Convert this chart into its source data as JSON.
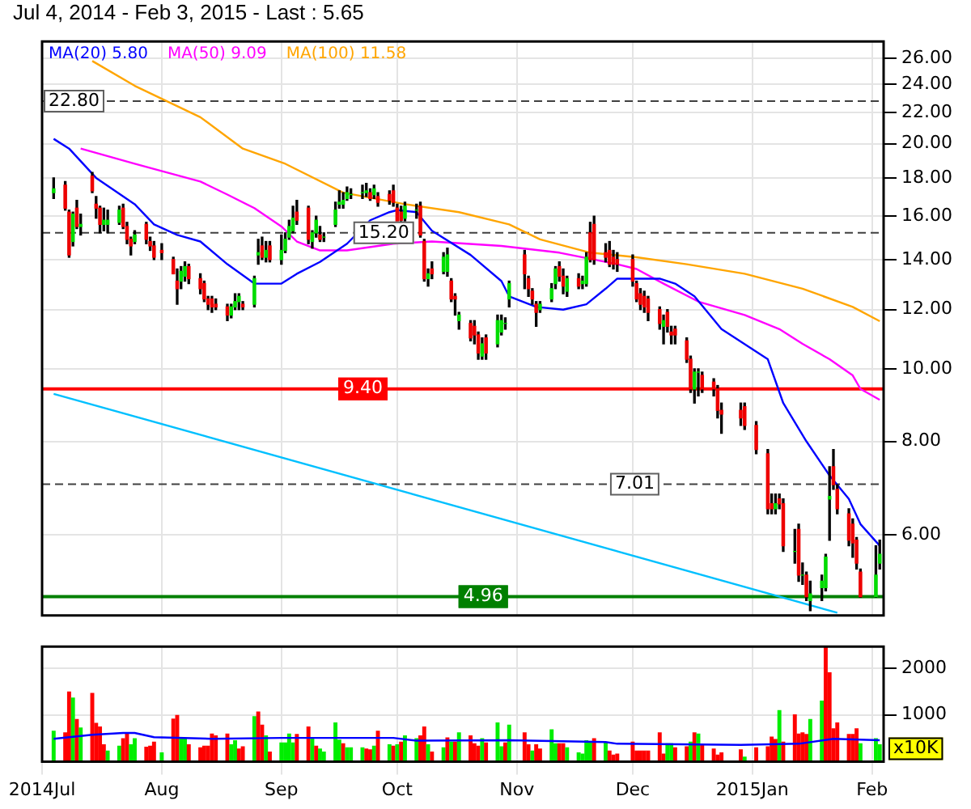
{
  "chart_data": [
    {
      "type": "candlestick",
      "title": "Jul 4, 2014 - Feb 3, 2015 - Last : 5.65",
      "x": [
        "2014-07-04",
        "2014-07-07",
        "2014-07-08",
        "2014-07-09",
        "2014-07-10",
        "2014-07-11",
        "2014-07-14",
        "2014-07-15",
        "2014-07-16",
        "2014-07-17",
        "2014-07-18",
        "2014-07-21",
        "2014-07-22",
        "2014-07-23",
        "2014-07-24",
        "2014-07-25",
        "2014-07-28",
        "2014-07-29",
        "2014-07-30",
        "2014-08-01",
        "2014-08-04",
        "2014-08-05",
        "2014-08-06",
        "2014-08-07",
        "2014-08-08",
        "2014-08-11",
        "2014-08-12",
        "2014-08-13",
        "2014-08-14",
        "2014-08-15",
        "2014-08-18",
        "2014-08-19",
        "2014-08-20",
        "2014-08-21",
        "2014-08-22",
        "2014-08-25",
        "2014-08-26",
        "2014-08-27",
        "2014-08-28",
        "2014-08-29",
        "2014-09-01",
        "2014-09-02",
        "2014-09-03",
        "2014-09-04",
        "2014-09-05",
        "2014-09-08",
        "2014-09-09",
        "2014-09-10",
        "2014-09-11",
        "2014-09-12",
        "2014-09-15",
        "2014-09-16",
        "2014-09-17",
        "2014-09-18",
        "2014-09-19",
        "2014-09-22",
        "2014-09-23",
        "2014-09-24",
        "2014-09-25",
        "2014-09-26",
        "2014-09-29",
        "2014-09-30",
        "2014-10-01",
        "2014-10-02",
        "2014-10-03",
        "2014-10-06",
        "2014-10-07",
        "2014-10-08",
        "2014-10-09",
        "2014-10-10",
        "2014-10-13",
        "2014-10-14",
        "2014-10-15",
        "2014-10-16",
        "2014-10-17",
        "2014-10-20",
        "2014-10-21",
        "2014-10-22",
        "2014-10-23",
        "2014-10-24",
        "2014-10-27",
        "2014-10-28",
        "2014-10-29",
        "2014-10-30",
        "2014-11-03",
        "2014-11-04",
        "2014-11-05",
        "2014-11-06",
        "2014-11-07",
        "2014-11-10",
        "2014-11-11",
        "2014-11-12",
        "2014-11-13",
        "2014-11-14",
        "2014-11-17",
        "2014-11-18",
        "2014-11-19",
        "2014-11-20",
        "2014-11-21",
        "2014-11-24",
        "2014-11-25",
        "2014-11-26",
        "2014-11-27",
        "2014-12-01",
        "2014-12-02",
        "2014-12-03",
        "2014-12-04",
        "2014-12-05",
        "2014-12-08",
        "2014-12-09",
        "2014-12-10",
        "2014-12-11",
        "2014-12-12",
        "2014-12-15",
        "2014-12-16",
        "2014-12-17",
        "2014-12-18",
        "2014-12-19",
        "2014-12-22",
        "2014-12-23",
        "2014-12-24",
        "2014-12-29",
        "2014-12-30",
        "2015-01-02",
        "2015-01-05",
        "2015-01-06",
        "2015-01-07",
        "2015-01-08",
        "2015-01-09",
        "2015-01-12",
        "2015-01-13",
        "2015-01-14",
        "2015-01-15",
        "2015-01-16",
        "2015-01-19",
        "2015-01-20",
        "2015-01-21",
        "2015-01-22",
        "2015-01-23",
        "2015-01-26",
        "2015-01-27",
        "2015-01-28",
        "2015-01-29",
        "2015-02-02",
        "2015-02-03"
      ],
      "ohlc": [
        [
          17.2,
          18.0,
          16.9,
          17.4
        ],
        [
          17.6,
          17.8,
          16.3,
          16.4
        ],
        [
          16.2,
          16.3,
          14.1,
          14.2
        ],
        [
          14.8,
          16.2,
          14.6,
          16.1
        ],
        [
          16.4,
          16.8,
          15.4,
          15.5
        ],
        [
          15.5,
          16.1,
          15.1,
          15.6
        ],
        [
          18.1,
          18.3,
          17.2,
          17.3
        ],
        [
          16.6,
          17.0,
          15.9,
          16.4
        ],
        [
          16.4,
          16.5,
          15.2,
          15.6
        ],
        [
          15.6,
          16.4,
          15.3,
          15.8
        ],
        [
          15.6,
          16.3,
          15.2,
          15.8
        ],
        [
          15.7,
          16.5,
          15.6,
          16.3
        ],
        [
          16.4,
          16.6,
          15.4,
          15.5
        ],
        [
          15.5,
          15.7,
          14.7,
          14.9
        ],
        [
          14.9,
          15.0,
          14.2,
          14.6
        ],
        [
          14.8,
          15.3,
          14.7,
          15.1
        ],
        [
          15.6,
          15.7,
          14.7,
          14.9
        ],
        [
          14.8,
          15.0,
          14.4,
          14.6
        ],
        [
          14.6,
          14.8,
          14.0,
          14.1
        ],
        [
          14.4,
          14.7,
          14.0,
          14.3
        ],
        [
          14.0,
          14.1,
          13.4,
          13.4
        ],
        [
          13.1,
          13.6,
          12.2,
          12.8
        ],
        [
          13.1,
          13.7,
          12.8,
          13.5
        ],
        [
          13.3,
          13.9,
          13.1,
          13.7
        ],
        [
          13.7,
          13.8,
          13.0,
          13.2
        ],
        [
          13.2,
          13.4,
          12.6,
          12.8
        ],
        [
          13.0,
          13.1,
          12.3,
          12.4
        ],
        [
          12.4,
          12.5,
          12.0,
          12.2
        ],
        [
          12.4,
          12.5,
          11.9,
          12.1
        ],
        [
          12.2,
          12.4,
          12.0,
          12.1
        ],
        [
          12.1,
          12.2,
          11.6,
          11.8
        ],
        [
          11.8,
          12.2,
          11.7,
          12.1
        ],
        [
          12.1,
          12.6,
          12.0,
          12.3
        ],
        [
          12.3,
          12.6,
          12.0,
          12.5
        ],
        [
          12.2,
          12.3,
          12.0,
          12.1
        ],
        [
          12.2,
          13.3,
          12.1,
          13.2
        ],
        [
          14.2,
          14.9,
          13.8,
          14.3
        ],
        [
          14.6,
          15.0,
          14.0,
          14.1
        ],
        [
          14.1,
          14.8,
          13.9,
          14.4
        ],
        [
          14.6,
          14.8,
          13.9,
          14.0
        ],
        [
          14.0,
          15.1,
          13.8,
          14.4
        ],
        [
          14.4,
          15.2,
          14.3,
          14.9
        ],
        [
          15.0,
          15.8,
          14.9,
          15.5
        ],
        [
          15.3,
          16.5,
          15.2,
          15.9
        ],
        [
          16.2,
          16.8,
          15.6,
          15.8
        ],
        [
          16.4,
          16.5,
          14.7,
          14.9
        ],
        [
          14.8,
          15.3,
          14.5,
          15.2
        ],
        [
          15.2,
          16.0,
          15.0,
          15.8
        ],
        [
          15.1,
          15.5,
          14.8,
          14.9
        ],
        [
          15.0,
          15.2,
          14.8,
          15.0
        ],
        [
          15.6,
          16.7,
          15.5,
          16.3
        ],
        [
          16.6,
          17.3,
          16.4,
          16.7
        ],
        [
          16.6,
          17.2,
          16.4,
          16.8
        ],
        [
          16.9,
          17.5,
          16.8,
          17.2
        ],
        [
          17.1,
          17.4,
          16.9,
          17.1
        ],
        [
          17.2,
          17.6,
          16.9,
          17.2
        ],
        [
          17.2,
          17.7,
          17.0,
          17.3
        ],
        [
          17.2,
          17.4,
          16.8,
          16.9
        ],
        [
          17.1,
          17.6,
          16.9,
          17.4
        ],
        [
          17.0,
          17.2,
          16.5,
          16.7
        ],
        [
          17.1,
          17.3,
          16.6,
          16.8
        ],
        [
          17.3,
          17.6,
          16.5,
          16.7
        ],
        [
          16.4,
          16.6,
          15.3,
          15.6
        ],
        [
          16.2,
          16.5,
          15.3,
          15.8
        ],
        [
          15.9,
          16.7,
          15.7,
          16.5
        ],
        [
          16.3,
          16.6,
          15.9,
          16.3
        ],
        [
          16.5,
          16.7,
          15.0,
          15.1
        ],
        [
          14.8,
          14.9,
          13.1,
          13.2
        ],
        [
          13.2,
          13.6,
          12.9,
          13.4
        ],
        [
          13.6,
          13.9,
          13.2,
          13.4
        ],
        [
          13.5,
          14.3,
          13.4,
          14.1
        ],
        [
          13.5,
          14.5,
          13.3,
          14.2
        ],
        [
          13.1,
          13.2,
          12.3,
          12.4
        ],
        [
          12.5,
          12.6,
          11.8,
          12.4
        ],
        [
          11.6,
          11.9,
          11.3,
          11.8
        ],
        [
          11.5,
          11.6,
          10.9,
          11.0
        ],
        [
          11.4,
          11.6,
          10.8,
          11.1
        ],
        [
          11.1,
          11.2,
          10.3,
          10.5
        ],
        [
          10.4,
          11.0,
          10.3,
          10.8
        ],
        [
          11.0,
          11.1,
          10.3,
          10.5
        ],
        [
          10.8,
          11.8,
          10.7,
          11.6
        ],
        [
          11.2,
          11.8,
          11.1,
          11.6
        ],
        [
          11.5,
          11.7,
          11.3,
          11.5
        ],
        [
          12.4,
          13.1,
          12.1,
          13.0
        ],
        [
          14.2,
          14.4,
          12.8,
          13.4
        ],
        [
          13.2,
          13.3,
          12.5,
          12.8
        ],
        [
          12.7,
          12.8,
          12.2,
          12.4
        ],
        [
          12.2,
          12.3,
          11.4,
          11.9
        ],
        [
          12.0,
          12.3,
          11.9,
          12.2
        ],
        [
          12.4,
          13.0,
          12.3,
          12.8
        ],
        [
          13.0,
          13.7,
          12.8,
          13.6
        ],
        [
          13.7,
          13.9,
          13.1,
          13.3
        ],
        [
          13.3,
          13.6,
          12.6,
          12.9
        ],
        [
          12.7,
          13.3,
          12.5,
          13.2
        ],
        [
          13.2,
          13.4,
          12.8,
          12.9
        ],
        [
          13.0,
          13.3,
          12.8,
          13.1
        ],
        [
          13.0,
          14.3,
          12.9,
          14.1
        ],
        [
          15.2,
          15.7,
          13.9,
          14.0
        ],
        [
          15.6,
          16.0,
          13.8,
          14.0
        ],
        [
          14.3,
          14.7,
          13.9,
          14.1
        ],
        [
          14.4,
          14.8,
          13.7,
          13.8
        ],
        [
          14.1,
          14.4,
          13.6,
          13.8
        ],
        [
          14.0,
          14.3,
          13.5,
          13.8
        ],
        [
          14.0,
          14.2,
          12.9,
          13.1
        ],
        [
          13.0,
          13.1,
          12.3,
          12.4
        ],
        [
          12.6,
          12.8,
          12.0,
          12.2
        ],
        [
          12.5,
          12.7,
          11.9,
          12.1
        ],
        [
          12.4,
          12.5,
          11.6,
          11.9
        ],
        [
          12.0,
          12.1,
          11.3,
          11.5
        ],
        [
          11.4,
          11.8,
          10.8,
          11.6
        ],
        [
          11.9,
          12.0,
          11.2,
          11.4
        ],
        [
          11.2,
          11.4,
          10.8,
          11.1
        ],
        [
          11.3,
          11.4,
          10.8,
          11.1
        ],
        [
          10.9,
          11.0,
          10.2,
          10.3
        ],
        [
          10.3,
          10.4,
          9.3,
          9.4
        ],
        [
          9.4,
          10.0,
          9.0,
          9.9
        ],
        [
          9.9,
          10.0,
          9.2,
          9.9
        ],
        [
          9.8,
          9.9,
          9.3,
          9.4
        ],
        [
          9.6,
          9.7,
          9.2,
          9.4
        ],
        [
          9.4,
          9.5,
          8.6,
          8.8
        ],
        [
          8.8,
          9.0,
          8.2,
          8.7
        ],
        [
          8.8,
          9.0,
          8.4,
          8.6
        ],
        [
          8.9,
          9.0,
          8.3,
          8.4
        ],
        [
          8.4,
          8.5,
          7.7,
          7.8
        ],
        [
          7.7,
          7.8,
          6.4,
          6.5
        ],
        [
          6.6,
          6.8,
          6.4,
          6.5
        ],
        [
          6.5,
          6.8,
          6.4,
          6.6
        ],
        [
          6.7,
          6.8,
          6.5,
          6.6
        ],
        [
          6.6,
          6.7,
          5.7,
          5.8
        ],
        [
          5.7,
          6.1,
          5.5,
          5.7
        ],
        [
          6.1,
          6.2,
          5.2,
          5.3
        ],
        [
          5.3,
          5.5,
          5.15,
          5.3
        ],
        [
          5.3,
          5.35,
          4.9,
          4.96
        ],
        [
          4.9,
          5.2,
          4.75,
          5.0
        ],
        [
          5.1,
          5.3,
          4.9,
          5.2
        ],
        [
          5.1,
          5.65,
          5.05,
          5.6
        ],
        [
          6.7,
          7.4,
          5.9,
          6.75
        ],
        [
          7.4,
          7.8,
          6.9,
          7.0
        ],
        [
          6.9,
          7.0,
          6.4,
          6.5
        ],
        [
          6.4,
          6.5,
          5.8,
          5.9
        ],
        [
          6.2,
          6.3,
          5.6,
          5.85
        ],
        [
          5.9,
          5.95,
          5.4,
          5.5
        ],
        [
          5.35,
          5.4,
          4.95,
          4.96
        ],
        [
          4.96,
          5.8,
          4.95,
          5.3
        ],
        [
          5.5,
          5.9,
          5.4,
          5.65
        ]
      ],
      "series": [
        {
          "type": "line",
          "name": "MA(20) 5.80",
          "color": "#0000ff",
          "x": [
            "2014-07-04",
            "2014-07-08",
            "2014-07-15",
            "2014-07-25",
            "2014-07-30",
            "2014-08-05",
            "2014-08-11",
            "2014-08-18",
            "2014-08-25",
            "2014-09-01",
            "2014-09-05",
            "2014-09-11",
            "2014-09-18",
            "2014-09-24",
            "2014-09-29",
            "2014-10-01",
            "2014-10-06",
            "2014-10-10",
            "2014-10-20",
            "2014-10-28",
            "2014-10-30",
            "2014-11-06",
            "2014-11-13",
            "2014-11-19",
            "2014-11-24",
            "2014-11-27",
            "2014-12-08",
            "2014-12-12",
            "2014-12-17",
            "2014-12-24",
            "2015-01-05",
            "2015-01-09",
            "2015-01-15",
            "2015-01-21",
            "2015-01-26",
            "2015-01-29",
            "2015-02-03"
          ],
          "values": [
            20.3,
            19.7,
            18.0,
            16.6,
            15.6,
            15.1,
            14.8,
            13.8,
            13.0,
            13.0,
            13.4,
            13.9,
            14.7,
            15.8,
            16.2,
            16.3,
            16.2,
            15.3,
            14.2,
            13.1,
            12.5,
            12.1,
            12.0,
            12.2,
            12.8,
            13.2,
            13.2,
            13.0,
            12.5,
            11.3,
            10.3,
            9.0,
            8.0,
            7.2,
            6.7,
            6.2,
            5.8
          ]
        },
        {
          "type": "line",
          "name": "MA(50) 9.09",
          "color": "#ff00ff",
          "x": [
            "2014-07-11",
            "2014-07-25",
            "2014-07-30",
            "2014-08-11",
            "2014-08-18",
            "2014-08-25",
            "2014-09-01",
            "2014-09-05",
            "2014-09-11",
            "2014-09-18",
            "2014-09-30",
            "2014-10-10",
            "2014-10-28",
            "2014-11-12",
            "2014-11-21",
            "2014-11-27",
            "2014-12-02",
            "2014-12-09",
            "2014-12-18",
            "2014-12-30",
            "2015-01-08",
            "2015-01-14",
            "2015-01-21",
            "2015-01-27",
            "2015-01-29",
            "2015-02-03"
          ],
          "values": [
            19.7,
            18.8,
            18.5,
            17.8,
            17.1,
            16.4,
            15.5,
            14.8,
            14.4,
            14.4,
            14.7,
            14.8,
            14.6,
            14.3,
            14.0,
            13.8,
            13.6,
            13.0,
            12.3,
            11.8,
            11.3,
            10.8,
            10.3,
            9.8,
            9.4,
            9.09
          ]
        },
        {
          "type": "line",
          "name": "MA(100) 11.58",
          "color": "#ffa500",
          "x": [
            "2014-07-14",
            "2014-07-25",
            "2014-08-11",
            "2014-08-22",
            "2014-09-02",
            "2014-09-17",
            "2014-10-03",
            "2014-10-17",
            "2014-10-30",
            "2014-11-07",
            "2014-11-20",
            "2014-12-02",
            "2014-12-15",
            "2014-12-30",
            "2015-01-14",
            "2015-01-27",
            "2015-02-03"
          ],
          "values": [
            25.8,
            23.9,
            21.7,
            19.7,
            18.8,
            17.2,
            16.6,
            16.2,
            15.6,
            14.9,
            14.3,
            14.1,
            13.8,
            13.4,
            12.8,
            12.1,
            11.58
          ]
        },
        {
          "type": "line",
          "color": "#00c0ff",
          "x": [
            "2014-07-04",
            "2015-01-23"
          ],
          "values": [
            9.26,
            4.72
          ]
        }
      ],
      "xlim": [
        "2014-07-01",
        "2015-02-04"
      ],
      "xticks": [
        {
          "value": "2014-07-01",
          "label": null
        },
        {
          "value": "2014-08-01",
          "label": null
        },
        {
          "value": "2014-09-01",
          "label": null
        },
        {
          "value": "2014-10-01",
          "label": null
        },
        {
          "value": "2014-11-01",
          "label": null
        },
        {
          "value": "2014-12-01",
          "label": null
        },
        {
          "value": "2015-01-01",
          "label": null
        },
        {
          "value": "2015-02-01",
          "label": null
        }
      ],
      "ylim": [
        4.68,
        27.4
      ],
      "yticks": [
        {
          "value": 6,
          "label": "6.00"
        },
        {
          "value": 8,
          "label": "8.00"
        },
        {
          "value": 10,
          "label": "10.00"
        },
        {
          "value": 12,
          "label": "12.00"
        },
        {
          "value": 14,
          "label": "14.00"
        },
        {
          "value": 16,
          "label": "16.00"
        },
        {
          "value": 18,
          "label": "18.00"
        },
        {
          "value": 20,
          "label": "20.00"
        },
        {
          "value": 22,
          "label": "22.00"
        },
        {
          "value": 24,
          "label": "24.00"
        },
        {
          "value": 26,
          "label": "26.00"
        }
      ],
      "log": true,
      "grid": true,
      "legend": "top left",
      "tick_labels": "y",
      "ref_lines": [
        {
          "axis": "y",
          "value": 22.8,
          "label": "22.80",
          "color": "#404040",
          "line_style": "dashed"
        },
        {
          "axis": "y",
          "value": 15.2,
          "label": "15.20",
          "color": "#404040",
          "line_style": "dashed"
        },
        {
          "axis": "y",
          "value": 9.4,
          "label": "9.40",
          "color": "#ff0000",
          "line_style": "solid"
        },
        {
          "axis": "y",
          "value": 7.01,
          "label": "7.01",
          "color": "#404040",
          "line_style": "dashed"
        },
        {
          "axis": "y",
          "value": 4.96,
          "label": "4.96",
          "color": "#008000",
          "line_style": "solid"
        }
      ]
    },
    {
      "type": "bar",
      "ylabel": "x10K",
      "series": [
        {
          "type": "bar",
          "x": [
            "2014-07-04",
            "2014-07-07",
            "2014-07-08",
            "2014-07-09",
            "2014-07-10",
            "2014-07-11",
            "2014-07-14",
            "2014-07-15",
            "2014-07-16",
            "2014-07-17",
            "2014-07-18",
            "2014-07-21",
            "2014-07-22",
            "2014-07-23",
            "2014-07-24",
            "2014-07-25",
            "2014-07-28",
            "2014-07-29",
            "2014-07-30",
            "2014-08-01",
            "2014-08-04",
            "2014-08-05",
            "2014-08-06",
            "2014-08-07",
            "2014-08-08",
            "2014-08-11",
            "2014-08-12",
            "2014-08-13",
            "2014-08-14",
            "2014-08-15",
            "2014-08-18",
            "2014-08-19",
            "2014-08-20",
            "2014-08-21",
            "2014-08-22",
            "2014-08-25",
            "2014-08-26",
            "2014-08-27",
            "2014-08-28",
            "2014-08-29",
            "2014-09-01",
            "2014-09-02",
            "2014-09-03",
            "2014-09-04",
            "2014-09-05",
            "2014-09-08",
            "2014-09-09",
            "2014-09-10",
            "2014-09-11",
            "2014-09-12",
            "2014-09-15",
            "2014-09-16",
            "2014-09-17",
            "2014-09-18",
            "2014-09-19",
            "2014-09-22",
            "2014-09-23",
            "2014-09-24",
            "2014-09-25",
            "2014-09-26",
            "2014-09-29",
            "2014-09-30",
            "2014-10-01",
            "2014-10-02",
            "2014-10-03",
            "2014-10-06",
            "2014-10-07",
            "2014-10-08",
            "2014-10-09",
            "2014-10-10",
            "2014-10-13",
            "2014-10-14",
            "2014-10-15",
            "2014-10-16",
            "2014-10-17",
            "2014-10-20",
            "2014-10-21",
            "2014-10-22",
            "2014-10-23",
            "2014-10-24",
            "2014-10-27",
            "2014-10-28",
            "2014-10-29",
            "2014-10-30",
            "2014-11-03",
            "2014-11-04",
            "2014-11-05",
            "2014-11-06",
            "2014-11-07",
            "2014-11-10",
            "2014-11-11",
            "2014-11-12",
            "2014-11-13",
            "2014-11-14",
            "2014-11-17",
            "2014-11-18",
            "2014-11-19",
            "2014-11-20",
            "2014-11-21",
            "2014-11-24",
            "2014-11-25",
            "2014-11-26",
            "2014-11-27",
            "2014-12-01",
            "2014-12-02",
            "2014-12-03",
            "2014-12-04",
            "2014-12-05",
            "2014-12-08",
            "2014-12-09",
            "2014-12-10",
            "2014-12-11",
            "2014-12-12",
            "2014-12-15",
            "2014-12-16",
            "2014-12-17",
            "2014-12-18",
            "2014-12-19",
            "2014-12-22",
            "2014-12-23",
            "2014-12-24",
            "2014-12-29",
            "2014-12-30",
            "2015-01-02",
            "2015-01-05",
            "2015-01-06",
            "2015-01-07",
            "2015-01-08",
            "2015-01-09",
            "2015-01-12",
            "2015-01-13",
            "2015-01-14",
            "2015-01-15",
            "2015-01-16",
            "2015-01-19",
            "2015-01-20",
            "2015-01-21",
            "2015-01-22",
            "2015-01-23",
            "2015-01-26",
            "2015-01-27",
            "2015-01-28",
            "2015-01-29",
            "2015-02-02",
            "2015-02-03"
          ],
          "values": [
            650,
            615,
            1490,
            1360,
            900,
            720,
            1460,
            820,
            740,
            360,
            230,
            330,
            490,
            590,
            360,
            490,
            310,
            330,
            420,
            190,
            910,
            990,
            490,
            490,
            360,
            295,
            330,
            330,
            590,
            550,
            590,
            360,
            450,
            270,
            320,
            960,
            1060,
            780,
            550,
            205,
            400,
            400,
            590,
            400,
            580,
            740,
            490,
            330,
            270,
            205,
            830,
            460,
            385,
            295,
            295,
            295,
            270,
            255,
            330,
            650,
            360,
            330,
            360,
            420,
            550,
            490,
            550,
            740,
            360,
            205,
            295,
            510,
            420,
            420,
            615,
            550,
            385,
            330,
            490,
            400,
            830,
            320,
            400,
            780,
            615,
            360,
            230,
            360,
            270,
            680,
            385,
            385,
            385,
            295,
            190,
            165,
            450,
            420,
            490,
            400,
            230,
            140,
            165,
            420,
            230,
            230,
            230,
            230,
            615,
            165,
            385,
            385,
            295,
            320,
            420,
            615,
            590,
            360,
            270,
            140,
            190,
            255,
            100,
            295,
            320,
            525,
            475,
            1090,
            420,
            1000,
            590,
            615,
            580,
            900,
            1295,
            2460,
            1900,
            705,
            830,
            580,
            580,
            705,
            385,
            490,
            360
          ],
          "colors": [
            "#00ee00",
            "#ff0000",
            "#ff0000",
            "#00ee00",
            "#ff0000",
            "#00ee00",
            "#ff0000",
            "#ff0000",
            "#ff0000",
            "#ff0000",
            "#00ee00",
            "#00ee00",
            "#ff0000",
            "#ff0000",
            "#00ee00",
            "#00ee00",
            "#ff0000",
            "#ff0000",
            "#ff0000",
            "#00ee00",
            "#ff0000",
            "#ff0000",
            "#00ee00",
            "#00ee00",
            "#ff0000",
            "#ff0000",
            "#ff0000",
            "#ff0000",
            "#ff0000",
            "#ff0000",
            "#ff0000",
            "#00ee00",
            "#00ee00",
            "#ff0000",
            "#ff0000",
            "#00ee00",
            "#ff0000",
            "#ff0000",
            "#00ee00",
            "#ff0000",
            "#00ee00",
            "#00ee00",
            "#00ee00",
            "#00ee00",
            "#ff0000",
            "#ff0000",
            "#00ee00",
            "#ff0000",
            "#00ee00",
            "#00ee00",
            "#00ee00",
            "#00ee00",
            "#ff0000",
            "#00ee00",
            "#00ee00",
            "#00ee00",
            "#ff0000",
            "#ff0000",
            "#00ee00",
            "#ff0000",
            "#00ee00",
            "#ff0000",
            "#00ee00",
            "#ff0000",
            "#00ee00",
            "#00ee00",
            "#ff0000",
            "#ff0000",
            "#00ee00",
            "#ff0000",
            "#00ee00",
            "#ff0000",
            "#00ee00",
            "#ff0000",
            "#00ee00",
            "#ff0000",
            "#ff0000",
            "#ff0000",
            "#00ee00",
            "#ff0000",
            "#00ee00",
            "#00ee00",
            "#ff0000",
            "#00ee00",
            "#ff0000",
            "#ff0000",
            "#00ee00",
            "#ff0000",
            "#ff0000",
            "#00ee00",
            "#00ee00",
            "#ff0000",
            "#ff0000",
            "#00ee00",
            "#00ee00",
            "#00ee00",
            "#00ee00",
            "#00ee00",
            "#ff0000",
            "#00ee00",
            "#ff0000",
            "#ff0000",
            "#ff0000",
            "#ff0000",
            "#ff0000",
            "#ff0000",
            "#ff0000",
            "#ff0000",
            "#ff0000",
            "#ff0000",
            "#00ee00",
            "#00ee00",
            "#ff0000",
            "#ff0000",
            "#00ee00",
            "#ff0000",
            "#00ee00",
            "#ff0000",
            "#ff0000",
            "#ff0000",
            "#ff0000",
            "#ff0000",
            "#00ee00",
            "#ff0000",
            "#ff0000",
            "#ff0000",
            "#ff0000",
            "#00ee00",
            "#ff0000",
            "#ff0000",
            "#ff0000",
            "#ff0000",
            "#ff0000",
            "#00ee00",
            "#00ee00",
            "#ff0000",
            "#ff0000",
            "#ff0000",
            "#ff0000",
            "#ff0000",
            "#ff0000",
            "#ff0000",
            "#00ee00",
            "#00ee00",
            "#00ee00"
          ]
        },
        {
          "type": "line",
          "color": "#0000ff",
          "x": [
            "2014-07-04",
            "2014-07-14",
            "2014-07-22",
            "2014-07-25",
            "2014-07-30",
            "2014-08-14",
            "2014-09-01",
            "2014-09-30",
            "2014-10-06",
            "2014-10-30",
            "2014-11-24",
            "2014-11-27",
            "2014-12-29",
            "2015-01-13",
            "2015-01-22",
            "2015-02-03"
          ],
          "values": [
            490,
            575,
            615,
            615,
            525,
            490,
            510,
            510,
            450,
            460,
            420,
            385,
            360,
            385,
            490,
            460
          ]
        }
      ],
      "xlim": [
        "2014-07-01",
        "2015-02-04"
      ],
      "xticks": [
        {
          "value": "2014-07-01",
          "label": "2014Jul"
        },
        {
          "value": "2014-08-01",
          "label": "Aug"
        },
        {
          "value": "2014-09-01",
          "label": "Sep"
        },
        {
          "value": "2014-10-01",
          "label": "Oct"
        },
        {
          "value": "2014-11-01",
          "label": "Nov"
        },
        {
          "value": "2014-12-01",
          "label": "Dec"
        },
        {
          "value": "2015-01-01",
          "label": "2015Jan"
        },
        {
          "value": "2015-02-01",
          "label": "Feb"
        }
      ],
      "ylim": [
        0,
        2460
      ],
      "yticks": [
        1000,
        2000
      ],
      "grid": true
    }
  ]
}
